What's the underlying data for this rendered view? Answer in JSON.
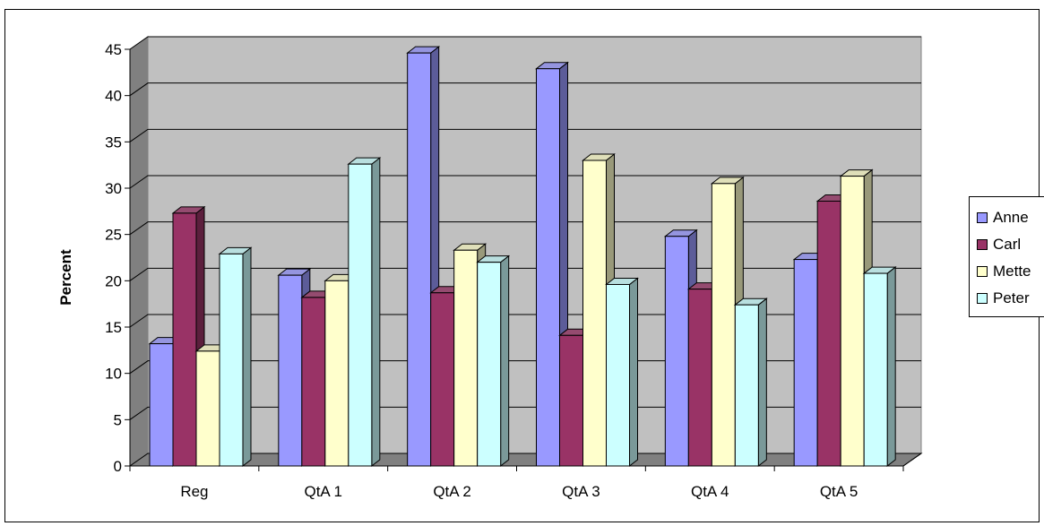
{
  "chart_data": {
    "type": "bar",
    "title": "",
    "xlabel": "",
    "ylabel": "Percent",
    "ylim": [
      0,
      45
    ],
    "yticks": [
      "0",
      "5",
      "10",
      "15",
      "20",
      "25",
      "30",
      "35",
      "40",
      "45"
    ],
    "categories": [
      "Reg",
      "QtA 1",
      "QtA 2",
      "QtA 3",
      "QtA 4",
      "QtA 5"
    ],
    "series": [
      {
        "name": "Anne",
        "color": "#9999ff",
        "values": [
          13.2,
          20.6,
          44.6,
          42.9,
          24.8,
          22.3
        ]
      },
      {
        "name": "Carl",
        "color": "#993366",
        "values": [
          27.3,
          18.2,
          18.7,
          14.1,
          19.1,
          28.6
        ]
      },
      {
        "name": "Mette",
        "color": "#ffffcc",
        "values": [
          12.4,
          20.0,
          23.3,
          33.0,
          30.5,
          31.3
        ]
      },
      {
        "name": "Peter",
        "color": "#ccffff",
        "values": [
          22.9,
          32.6,
          22.0,
          19.6,
          17.4,
          20.8
        ]
      }
    ],
    "grid": true,
    "style": "3d-clustered-column",
    "legend_position": "right"
  },
  "colors": {
    "wall": "#c0c0c0",
    "floor": "#808080",
    "gridline": "#000000"
  }
}
